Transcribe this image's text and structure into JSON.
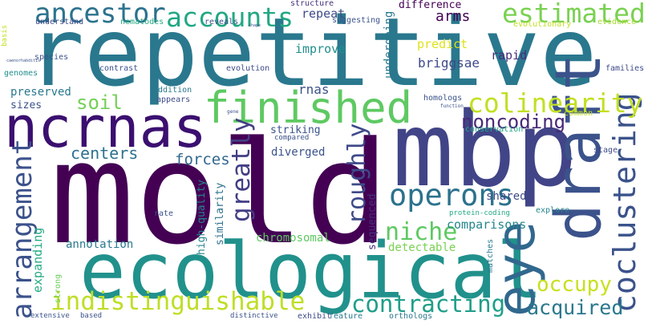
{
  "words": [
    {
      "text": "repetitive",
      "color": "#2a788e"
    },
    {
      "text": "mold",
      "color": "#440154"
    },
    {
      "text": "mbp",
      "color": "#414487"
    },
    {
      "text": "ecological",
      "color": "#21918c"
    },
    {
      "text": "ncrnas",
      "color": "#3b0f70"
    },
    {
      "text": "draft",
      "color": "#3b528b"
    },
    {
      "text": "finished",
      "color": "#5ec962"
    },
    {
      "text": "eye",
      "color": "#31688e"
    },
    {
      "text": "coclustering",
      "color": "#3b528b"
    },
    {
      "text": "colinearity",
      "color": "#c2df23"
    },
    {
      "text": "estimated",
      "color": "#7ad151"
    },
    {
      "text": "ancestor",
      "color": "#2c728e"
    },
    {
      "text": "accounts",
      "color": "#22a884"
    },
    {
      "text": "arrangement",
      "color": "#3b528b"
    },
    {
      "text": "indistinguishable",
      "color": "#bddf26"
    },
    {
      "text": "contracting",
      "color": "#1f9e89"
    },
    {
      "text": "operons",
      "color": "#2c728e"
    },
    {
      "text": "noncoding",
      "color": "#482878"
    },
    {
      "text": "niche",
      "color": "#5ec962"
    },
    {
      "text": "occupy",
      "color": "#c8e020"
    },
    {
      "text": "roughly",
      "color": "#3e4a89"
    },
    {
      "text": "greatly",
      "color": "#433e85"
    },
    {
      "text": "acquired",
      "color": "#2a788e"
    },
    {
      "text": "soil",
      "color": "#73d056"
    },
    {
      "text": "arms",
      "color": "#440154"
    },
    {
      "text": "centers",
      "color": "#2c728e"
    },
    {
      "text": "forces",
      "color": "#31688e"
    },
    {
      "text": "repeat",
      "color": "#3e4a89"
    },
    {
      "text": "expanding",
      "color": "#25ab82"
    },
    {
      "text": "comparisons",
      "color": "#25858e"
    },
    {
      "text": "improve",
      "color": "#218f8d"
    },
    {
      "text": "rnas",
      "color": "#3b528b"
    },
    {
      "text": "briggsae",
      "color": "#3e4a89"
    },
    {
      "text": "rapid",
      "color": "#472d7b"
    },
    {
      "text": "predict",
      "color": "#dde318"
    },
    {
      "text": "difference",
      "color": "#440154"
    },
    {
      "text": "undergoing",
      "color": "#2a788e"
    },
    {
      "text": "striking",
      "color": "#3b528b"
    },
    {
      "text": "diverged",
      "color": "#3b528b"
    },
    {
      "text": "shared",
      "color": "#3e4a89"
    },
    {
      "text": "similarity",
      "color": "#2c728e"
    },
    {
      "text": "high-quality",
      "color": "#25858e"
    },
    {
      "text": "annotation",
      "color": "#2a788e"
    },
    {
      "text": "chromosomal",
      "color": "#5ec962"
    },
    {
      "text": "detectable",
      "color": "#7ad151"
    },
    {
      "text": "sequenced",
      "color": "#46327e"
    },
    {
      "text": "preserved",
      "color": "#2a788e"
    },
    {
      "text": "sizes",
      "color": "#3b528b"
    },
    {
      "text": "evolution",
      "color": "#3e4a89"
    },
    {
      "text": "contrast",
      "color": "#3b528b"
    },
    {
      "text": "genomes",
      "color": "#218f8d"
    },
    {
      "text": "species",
      "color": "#3b528b"
    },
    {
      "text": "understand",
      "color": "#3e4a89"
    },
    {
      "text": "structure",
      "color": "#46327e"
    },
    {
      "text": "nematodes",
      "color": "#25ab82"
    },
    {
      "text": "reveals",
      "color": "#3b528b"
    },
    {
      "text": "suggesting",
      "color": "#3b528b"
    },
    {
      "text": "evolutionary",
      "color": "#c2df23"
    },
    {
      "text": "evidence",
      "color": "#a8db34"
    },
    {
      "text": "families",
      "color": "#3e4a89"
    },
    {
      "text": "homologs",
      "color": "#3b528b"
    },
    {
      "text": "conservation",
      "color": "#22a884"
    },
    {
      "text": "common",
      "color": "#c2df23"
    },
    {
      "text": "stage",
      "color": "#3e4a89"
    },
    {
      "text": "rate",
      "color": "#3b528b"
    },
    {
      "text": "explore",
      "color": "#25858e"
    },
    {
      "text": "protein-coding",
      "color": "#25ab82"
    },
    {
      "text": "matches",
      "color": "#2a788e"
    },
    {
      "text": "strong",
      "color": "#6ccd5a"
    },
    {
      "text": "extensive",
      "color": "#3b528b"
    },
    {
      "text": "based",
      "color": "#3b528b"
    },
    {
      "text": "distinctive",
      "color": "#3b528b"
    },
    {
      "text": "exhibit",
      "color": "#3e4a89"
    },
    {
      "text": "feature",
      "color": "#2a788e"
    },
    {
      "text": "orthologs",
      "color": "#2a788e"
    },
    {
      "text": "appears",
      "color": "#3e4a89"
    },
    {
      "text": "addition",
      "color": "#2a788e"
    },
    {
      "text": "compared",
      "color": "#3b528b"
    },
    {
      "text": "basis",
      "color": "#c2df23"
    },
    {
      "text": "caenorhabditis",
      "color": "#3b528b"
    },
    {
      "text": "shape",
      "color": "#3b528b"
    },
    {
      "text": "gene",
      "color": "#3b528b"
    },
    {
      "text": "function",
      "color": "#3b528b"
    }
  ]
}
